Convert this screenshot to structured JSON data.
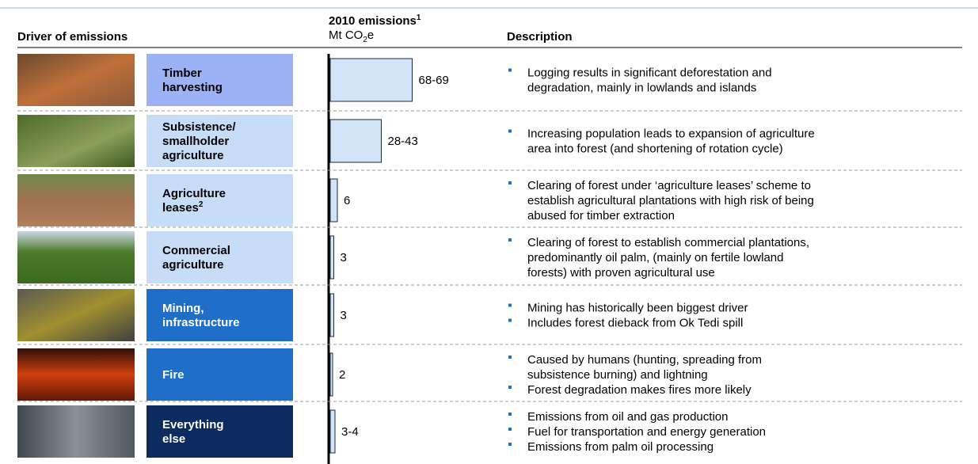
{
  "header": {
    "driver_title": "Driver of emissions",
    "emissions_title": "2010 emissions",
    "emissions_footnote": "1",
    "unit_prefix": "Mt CO",
    "unit_sub": "2",
    "unit_suffix": "e",
    "description_title": "Description"
  },
  "rows": [
    {
      "driver": [
        "Timber",
        "harvesting"
      ],
      "emissions": [
        68,
        69
      ],
      "emissions_label": "68-69",
      "style": "mid",
      "description": [
        [
          "Logging results in significant deforestation and",
          "degradation, mainly in lowlands and islands"
        ]
      ]
    },
    {
      "driver": [
        "Subsistence/",
        "smallholder",
        "agriculture"
      ],
      "emissions": [
        28,
        43
      ],
      "emissions_label": "28-43",
      "style": "light",
      "description": [
        [
          "Increasing population leads to expansion of agriculture",
          "area into forest (and shortening of rotation cycle)"
        ]
      ]
    },
    {
      "driver": [
        "Agriculture",
        "leases"
      ],
      "footnote": "2",
      "emissions": [
        6
      ],
      "emissions_label": "6",
      "style": "light",
      "description": [
        [
          "Clearing of forest under ‘agriculture leases’ scheme to",
          "establish agricultural plantations with high risk of being",
          "abused for timber extraction"
        ]
      ]
    },
    {
      "driver": [
        "Commercial",
        "agriculture"
      ],
      "emissions": [
        3
      ],
      "emissions_label": "3",
      "style": "light",
      "description": [
        [
          "Clearing of forest to establish commercial plantations,",
          "predominantly oil palm, (mainly on fertile lowland",
          "forests) with proven agricultural use"
        ]
      ]
    },
    {
      "driver": [
        "Mining,",
        "infrastructure"
      ],
      "emissions": [
        3
      ],
      "emissions_label": "3",
      "style": "dark",
      "description": [
        [
          "Mining has historically been biggest driver"
        ],
        [
          "Includes forest dieback from Ok Tedi spill"
        ]
      ]
    },
    {
      "driver": [
        "Fire"
      ],
      "emissions": [
        2
      ],
      "emissions_label": "2",
      "style": "dark",
      "description": [
        [
          "Caused by humans (hunting, spreading from",
          "subsistence burning) and lightning"
        ],
        [
          "Forest degradation makes fires more likely"
        ]
      ]
    },
    {
      "driver": [
        "Everything",
        "else"
      ],
      "emissions": [
        3,
        4
      ],
      "emissions_label": "3-4",
      "style": "navy",
      "description": [
        [
          "Emissions from oil and gas production"
        ],
        [
          "Fuel for transportation and energy generation"
        ],
        [
          "Emissions from palm oil processing"
        ]
      ]
    }
  ]
}
